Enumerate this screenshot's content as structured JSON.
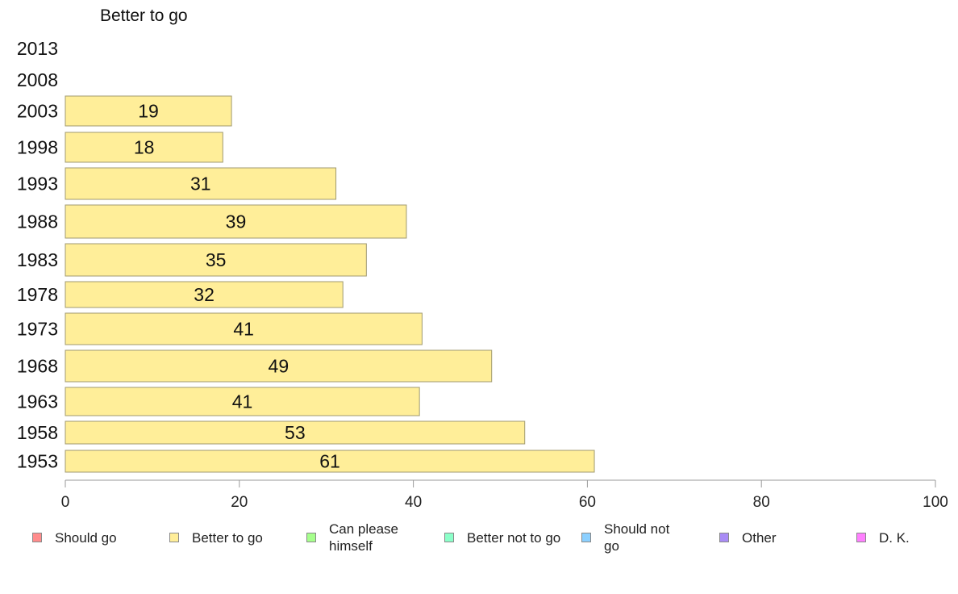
{
  "chart_data": {
    "type": "bar",
    "orientation": "horizontal",
    "title": "Better to go",
    "categories": [
      "2013",
      "2008",
      "2003",
      "1998",
      "1993",
      "1988",
      "1983",
      "1978",
      "1973",
      "1968",
      "1963",
      "1958",
      "1953"
    ],
    "series": [
      {
        "name": "Better to go",
        "color": "#ffee99",
        "values": [
          null,
          null,
          19,
          18,
          31,
          39,
          35,
          32,
          41,
          49,
          41,
          53,
          61
        ],
        "value_extent": [
          null,
          null,
          19.1,
          18.1,
          31.1,
          39.2,
          34.6,
          31.9,
          41.0,
          49.0,
          40.7,
          52.8,
          60.8
        ]
      }
    ],
    "xlim": [
      0,
      100
    ],
    "xticks": [
      "0",
      "20",
      "40",
      "60",
      "80",
      "100"
    ],
    "grid": false,
    "legend_position": "bottom",
    "legend": [
      {
        "label": "Should go",
        "color": "#ff8c8c"
      },
      {
        "label": "Better to go",
        "color": "#ffee99"
      },
      {
        "label": "Can please himself",
        "color": "#a6ff8c"
      },
      {
        "label": "Better not to go",
        "color": "#8cffc9"
      },
      {
        "label": "Should not go",
        "color": "#8cd0ff"
      },
      {
        "label": "Other",
        "color": "#a98cf5"
      },
      {
        "label": "D. K.",
        "color": "#ff80ff"
      }
    ]
  }
}
